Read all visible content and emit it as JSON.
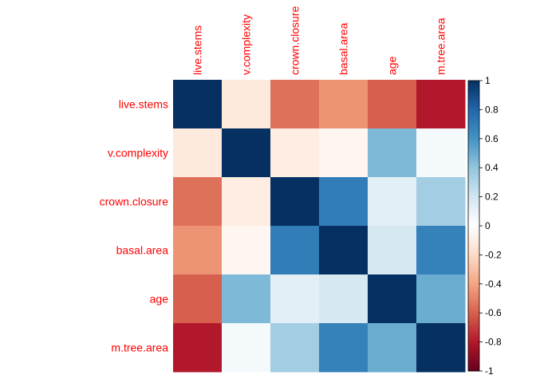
{
  "chart_data": {
    "type": "heatmap",
    "title": "",
    "variables": [
      "live.stems",
      "v.complexity",
      "crown.closure",
      "basal.area",
      "age",
      "m.tree.area"
    ],
    "matrix": [
      [
        1.0,
        -0.12,
        -0.55,
        -0.45,
        -0.6,
        -0.8
      ],
      [
        -0.12,
        1.0,
        -0.1,
        -0.05,
        0.45,
        0.05
      ],
      [
        -0.55,
        -0.1,
        1.0,
        0.7,
        0.12,
        0.35
      ],
      [
        -0.45,
        -0.05,
        0.7,
        1.0,
        0.18,
        0.68
      ],
      [
        -0.6,
        0.45,
        0.12,
        0.18,
        1.0,
        0.5
      ],
      [
        -0.8,
        0.05,
        0.35,
        0.68,
        0.5,
        1.0
      ]
    ],
    "colorbar": {
      "range": [
        -1,
        1
      ],
      "ticks": [
        "1",
        "0.8",
        "0.6",
        "0.4",
        "0.2",
        "0",
        "-0.2",
        "-0.4",
        "-0.6",
        "-0.8",
        "-1"
      ]
    },
    "colors": {
      "label": "#ff0000",
      "negative_end": "#67001f",
      "positive_end": "#053061",
      "mid": "#ffffff"
    }
  }
}
